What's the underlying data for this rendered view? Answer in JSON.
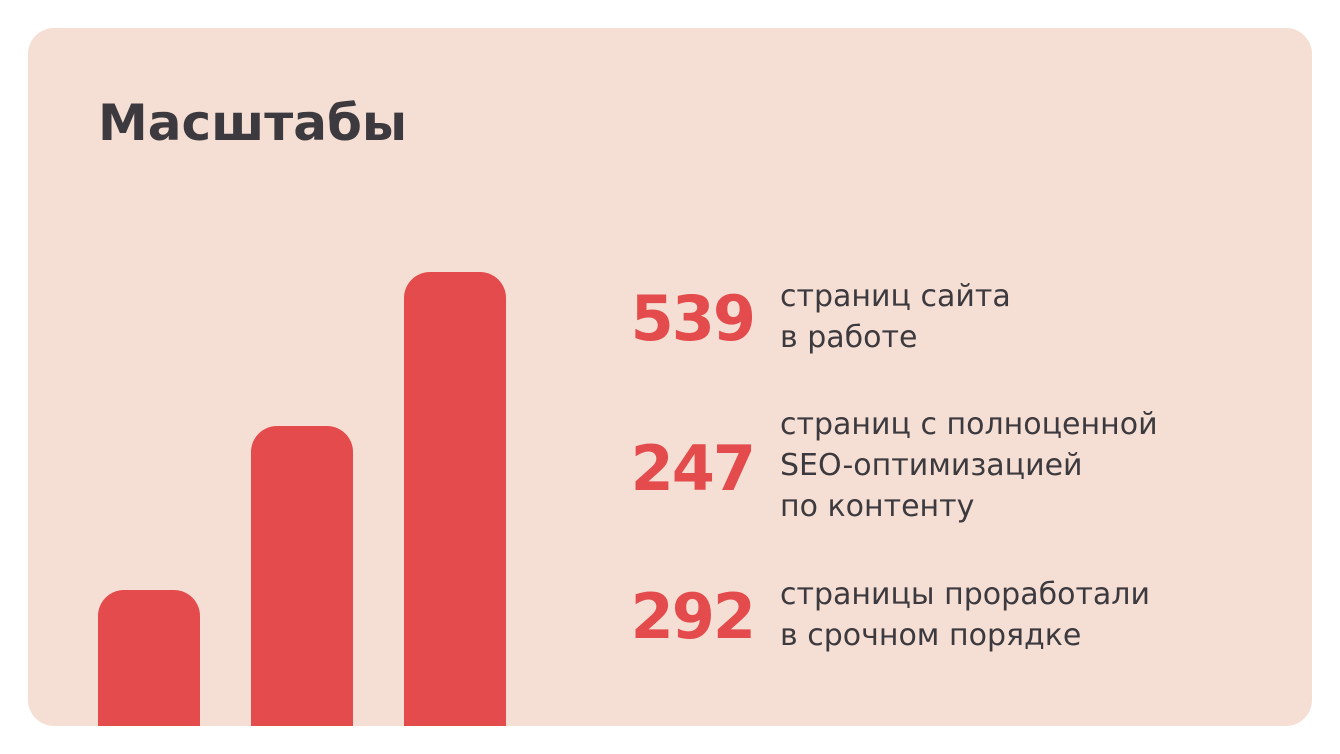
{
  "title": "Масштабы",
  "colors": {
    "card_background": "#f5dfd4",
    "accent": "#e44b4c",
    "text": "#3d3a3f"
  },
  "bars": [
    {
      "level": 0.3
    },
    {
      "level": 0.66
    },
    {
      "level": 1.0
    }
  ],
  "stats": [
    {
      "value": "539",
      "lines": [
        "страниц сайта",
        "в работе"
      ]
    },
    {
      "value": "247",
      "lines": [
        "страниц с полноценной",
        "SEO-оптимизацией",
        "по контенту"
      ]
    },
    {
      "value": "292",
      "lines": [
        "страницы проработали",
        "в срочном порядке"
      ]
    }
  ]
}
